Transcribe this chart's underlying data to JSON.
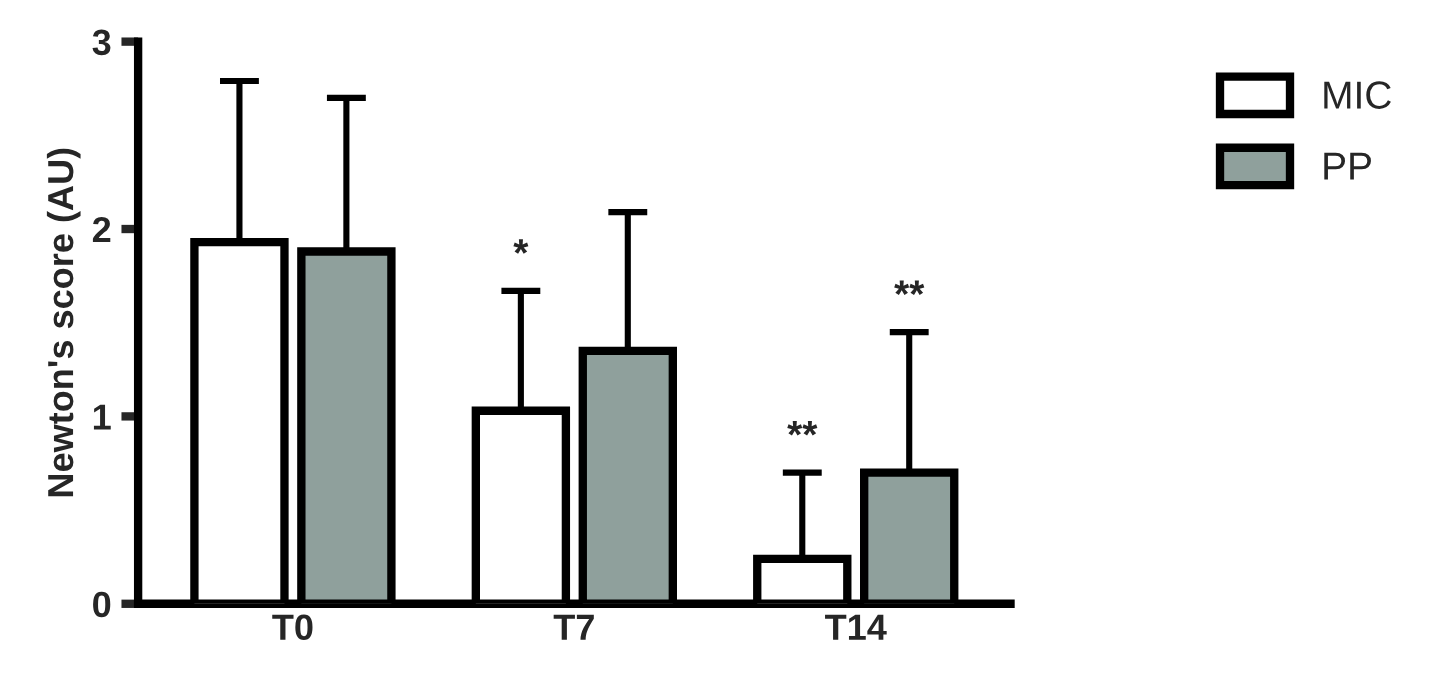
{
  "chart_data": {
    "type": "bar",
    "ylabel": "Newton's score (AU)",
    "categories": [
      "T0",
      "T7",
      "T14"
    ],
    "series": [
      {
        "name": "MIC",
        "color": "#ffffff",
        "values": [
          1.93,
          1.03,
          0.24
        ],
        "errors": [
          [
            1.93,
            2.79
          ],
          [
            1.03,
            1.67
          ],
          [
            0.24,
            0.7
          ]
        ]
      },
      {
        "name": "PP",
        "color": "#8fa09c",
        "values": [
          1.88,
          1.35,
          0.7
        ],
        "errors": [
          [
            1.88,
            2.7
          ],
          [
            1.35,
            2.09
          ],
          [
            0.7,
            1.45
          ]
        ]
      }
    ],
    "annotations": [
      "*",
      "**",
      "**"
    ],
    "ylim": [
      0,
      3
    ],
    "yticks": [
      0,
      1,
      2,
      3
    ],
    "grid": false,
    "legend": "top right"
  }
}
